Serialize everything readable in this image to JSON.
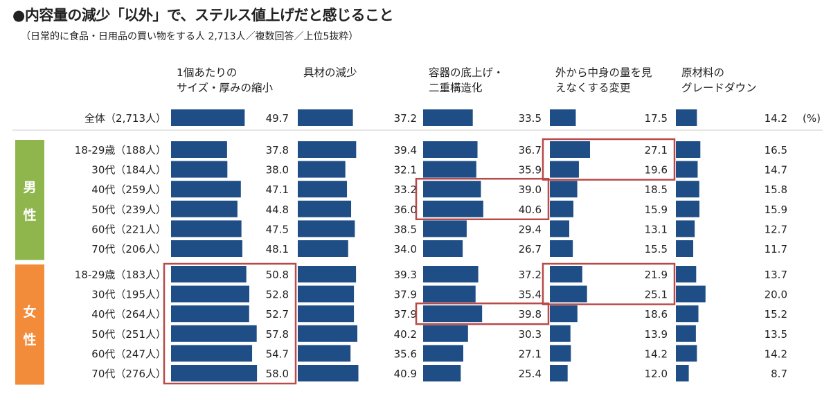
{
  "title": "●内容量の減少「以外」で、ステルス値上げだと感じること",
  "subtitle": "（日常的に食品・日用品の買い物をする人 2,713人／複数回答／上位5抜粋）",
  "chart_data": {
    "type": "bar",
    "unit": "(%)",
    "columns": [
      {
        "name": "1個あたりのサイズ・厚みの縮小",
        "lines": [
          "1個あたりの",
          "サイズ・厚みの縮小"
        ]
      },
      {
        "name": "具材の減少",
        "lines": [
          "具材の減少"
        ]
      },
      {
        "name": "容器の底上げ・二重構造化",
        "lines": [
          "容器の底上げ・",
          "二重構造化"
        ]
      },
      {
        "name": "外から中身の量を見えなくする変更",
        "lines": [
          "外から中身の量を見",
          "えなくする変更"
        ]
      },
      {
        "name": "原材料のグレードダウン",
        "lines": [
          "原材料の",
          "グレードダウン"
        ]
      }
    ],
    "groups": [
      {
        "label": "",
        "color": "",
        "rows": [
          {
            "label": "全体（2,713人）",
            "values": [
              49.7,
              37.2,
              33.5,
              17.5,
              14.2
            ]
          }
        ]
      },
      {
        "label": "男性",
        "color": "#8fb64c",
        "rows": [
          {
            "label": "18-29歳（188人）",
            "values": [
              37.8,
              39.4,
              36.7,
              27.1,
              16.5
            ]
          },
          {
            "label": "30代（184人）",
            "values": [
              38.0,
              32.1,
              35.9,
              19.6,
              14.7
            ]
          },
          {
            "label": "40代（259人）",
            "values": [
              47.1,
              33.2,
              39.0,
              18.5,
              15.8
            ]
          },
          {
            "label": "50代（239人）",
            "values": [
              44.8,
              36.0,
              40.6,
              15.9,
              15.9
            ]
          },
          {
            "label": "60代（221人）",
            "values": [
              47.5,
              38.5,
              29.4,
              13.1,
              12.7
            ]
          },
          {
            "label": "70代（206人）",
            "values": [
              48.1,
              34.0,
              26.7,
              15.5,
              11.7
            ]
          }
        ]
      },
      {
        "label": "女性",
        "color": "#f28c3a",
        "rows": [
          {
            "label": "18-29歳（183人）",
            "values": [
              50.8,
              39.3,
              37.2,
              21.9,
              13.7
            ]
          },
          {
            "label": "30代（195人）",
            "values": [
              52.8,
              37.9,
              35.4,
              25.1,
              20.0
            ]
          },
          {
            "label": "40代（264人）",
            "values": [
              52.7,
              37.9,
              39.8,
              18.6,
              15.2
            ]
          },
          {
            "label": "50代（251人）",
            "values": [
              57.8,
              40.2,
              30.3,
              13.9,
              13.5
            ]
          },
          {
            "label": "60代（247人）",
            "values": [
              54.7,
              35.6,
              27.1,
              14.2,
              14.2
            ]
          },
          {
            "label": "70代（276人）",
            "values": [
              58.0,
              40.9,
              25.4,
              12.0,
              8.7
            ]
          }
        ]
      }
    ],
    "highlights": [
      {
        "column": "1個あたりのサイズ・厚みの縮小",
        "group": "女性",
        "rows": [
          "18-29歳（183人）",
          "30代（195人）",
          "40代（264人）",
          "50代（251人）",
          "60代（247人）",
          "70代（276人）"
        ]
      },
      {
        "column": "容器の底上げ・二重構造化",
        "group": "男性",
        "rows": [
          "40代（259人）",
          "50代（239人）"
        ]
      },
      {
        "column": "容器の底上げ・二重構造化",
        "group": "女性",
        "rows": [
          "40代（264人）"
        ]
      },
      {
        "column": "外から中身の量を見えなくする変更",
        "group": "男性",
        "rows": [
          "18-29歳（188人）",
          "30代（184人）"
        ]
      },
      {
        "column": "外から中身の量を見えなくする変更",
        "group": "女性",
        "rows": [
          "18-29歳（183人）",
          "30代（195人）"
        ]
      }
    ],
    "colors": {
      "bar": "#1f4e86",
      "highlight": "#b84a4a",
      "divider": "#cccccc"
    }
  }
}
